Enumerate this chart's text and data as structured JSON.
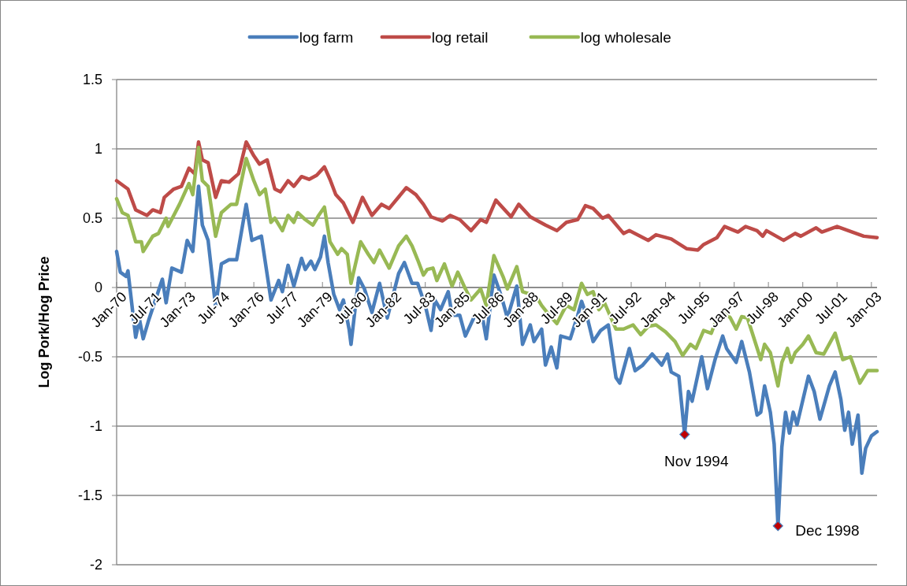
{
  "chart_data": {
    "type": "line",
    "ylabel": "Log Pork/Hog Price",
    "legend": "top",
    "grid": "y",
    "xlim": [
      "1970-01",
      "2003-04"
    ],
    "ylim": [
      -2,
      1.5
    ],
    "yticks": [
      -2,
      -1.5,
      -1,
      -0.5,
      0,
      0.5,
      1,
      1.5
    ],
    "xticks": [
      {
        "value": "1970-01",
        "label": "Jan-70"
      },
      {
        "value": "1971-07",
        "label": "Jul-71"
      },
      {
        "value": "1973-01",
        "label": "Jan-73"
      },
      {
        "value": "1974-07",
        "label": "Jul-74"
      },
      {
        "value": "1976-01",
        "label": "Jan-76"
      },
      {
        "value": "1977-07",
        "label": "Jul-77"
      },
      {
        "value": "1979-01",
        "label": "Jan-79"
      },
      {
        "value": "1980-07",
        "label": "Jul-80"
      },
      {
        "value": "1982-01",
        "label": "Jan-82"
      },
      {
        "value": "1983-07",
        "label": "Jul-83"
      },
      {
        "value": "1985-01",
        "label": "Jan-85"
      },
      {
        "value": "1986-07",
        "label": "Jul-86"
      },
      {
        "value": "1988-01",
        "label": "Jan-88"
      },
      {
        "value": "1989-07",
        "label": "Jul-89"
      },
      {
        "value": "1991-01",
        "label": "Jan-91"
      },
      {
        "value": "1992-07",
        "label": "Jul-92"
      },
      {
        "value": "1994-01",
        "label": "Jan-94"
      },
      {
        "value": "1995-07",
        "label": "Jul-95"
      },
      {
        "value": "1997-01",
        "label": "Jan-97"
      },
      {
        "value": "1998-07",
        "label": "Jul-98"
      },
      {
        "value": "2000-01",
        "label": "Jan-00"
      },
      {
        "value": "2001-07",
        "label": "Jul-01"
      },
      {
        "value": "2003-01",
        "label": "Jan-03"
      }
    ],
    "annotations": [
      {
        "text": "Nov 1994",
        "x": "1994-11",
        "y": -1.06
      },
      {
        "text": "Dec 1998",
        "x": "1998-12",
        "y": -1.72
      }
    ],
    "series": [
      {
        "name": "log farm",
        "color": "#4a7ebb",
        "x": [
          "1970-01",
          "1970-03",
          "1970-06",
          "1970-07",
          "1970-11",
          "1971-01",
          "1971-03",
          "1971-06",
          "1972-01",
          "1972-03",
          "1972-06",
          "1972-11",
          "1973-02",
          "1973-05",
          "1973-08",
          "1973-10",
          "1974-01",
          "1974-05",
          "1974-08",
          "1974-12",
          "1975-04",
          "1975-09",
          "1975-12",
          "1976-05",
          "1976-10",
          "1977-02",
          "1977-04",
          "1977-07",
          "1977-10",
          "1978-02",
          "1978-04",
          "1978-07",
          "1978-09",
          "1978-12",
          "1979-02",
          "1979-04",
          "1979-07",
          "1979-10",
          "1979-12",
          "1980-03",
          "1980-04",
          "1980-08",
          "1980-11",
          "1981-03",
          "1981-07",
          "1981-11",
          "1982-05",
          "1982-08",
          "1982-12",
          "1983-03",
          "1983-07",
          "1983-10",
          "1983-12",
          "1984-03",
          "1984-07",
          "1984-09",
          "1985-01",
          "1985-04",
          "1985-09",
          "1986-01",
          "1986-03",
          "1986-07",
          "1986-11",
          "1987-02",
          "1987-07",
          "1987-10",
          "1988-02",
          "1988-04",
          "1988-08",
          "1988-10",
          "1989-01",
          "1989-04",
          "1989-06",
          "1989-11",
          "1990-03",
          "1990-05",
          "1990-08",
          "1990-11",
          "1991-03",
          "1991-07",
          "1991-11",
          "1992-01",
          "1992-06",
          "1992-09",
          "1993-01",
          "1993-06",
          "1993-11",
          "1994-02",
          "1994-04",
          "1994-08",
          "1994-11",
          "1995-01",
          "1995-03",
          "1995-08",
          "1995-11",
          "1996-03",
          "1996-07",
          "1996-09",
          "1997-02",
          "1997-05",
          "1997-09",
          "1998-01",
          "1998-03",
          "1998-05",
          "1998-08",
          "1998-10",
          "1998-12",
          "1999-02",
          "1999-04",
          "1999-06",
          "1999-08",
          "1999-10",
          "2000-04",
          "2000-07",
          "2000-10",
          "2001-03",
          "2001-06",
          "2001-09",
          "2001-11",
          "2002-01",
          "2002-03",
          "2002-06",
          "2002-08",
          "2002-10",
          "2003-01",
          "2003-04"
        ],
        "values": [
          0.26,
          0.11,
          0.08,
          0.12,
          -0.36,
          -0.23,
          -0.37,
          -0.23,
          0.06,
          -0.11,
          0.14,
          0.11,
          0.34,
          0.26,
          0.73,
          0.45,
          0.34,
          -0.14,
          0.17,
          0.2,
          0.2,
          0.6,
          0.34,
          0.37,
          -0.09,
          0.05,
          -0.03,
          0.16,
          0.01,
          0.21,
          0.13,
          0.19,
          0.13,
          0.22,
          0.37,
          0.18,
          -0.05,
          -0.16,
          -0.09,
          -0.3,
          -0.41,
          0.07,
          -0.01,
          -0.18,
          0.03,
          -0.22,
          0.1,
          0.18,
          0.03,
          0.03,
          -0.13,
          -0.31,
          -0.09,
          -0.16,
          -0.03,
          -0.2,
          -0.2,
          -0.35,
          -0.2,
          -0.22,
          -0.37,
          0.09,
          -0.07,
          -0.22,
          0.01,
          -0.41,
          -0.27,
          -0.39,
          -0.3,
          -0.56,
          -0.43,
          -0.58,
          -0.35,
          -0.37,
          -0.2,
          -0.1,
          -0.22,
          -0.39,
          -0.31,
          -0.27,
          -0.65,
          -0.69,
          -0.44,
          -0.6,
          -0.56,
          -0.48,
          -0.56,
          -0.48,
          -0.61,
          -0.64,
          -1.06,
          -0.75,
          -0.82,
          -0.5,
          -0.73,
          -0.52,
          -0.35,
          -0.44,
          -0.54,
          -0.39,
          -0.61,
          -0.92,
          -0.9,
          -0.71,
          -0.9,
          -1.13,
          -1.72,
          -1.15,
          -0.9,
          -1.05,
          -0.9,
          -0.99,
          -0.64,
          -0.75,
          -0.95,
          -0.71,
          -0.61,
          -0.81,
          -1.03,
          -0.9,
          -1.13,
          -0.92,
          -1.34,
          -1.16,
          -1.07,
          -1.04
        ]
      },
      {
        "name": "log retail",
        "color": "#be4b48",
        "x": [
          "1970-01",
          "1970-07",
          "1970-11",
          "1971-05",
          "1971-08",
          "1971-12",
          "1972-02",
          "1972-07",
          "1972-11",
          "1973-03",
          "1973-06",
          "1973-08",
          "1973-10",
          "1974-01",
          "1974-05",
          "1974-08",
          "1974-12",
          "1975-05",
          "1975-09",
          "1976-01",
          "1976-04",
          "1976-08",
          "1976-12",
          "1977-03",
          "1977-07",
          "1977-10",
          "1978-02",
          "1978-06",
          "1978-10",
          "1979-02",
          "1979-05",
          "1979-08",
          "1979-12",
          "1980-05",
          "1980-10",
          "1981-03",
          "1981-08",
          "1981-12",
          "1982-09",
          "1983-02",
          "1983-06",
          "1983-10",
          "1984-04",
          "1984-08",
          "1985-01",
          "1985-07",
          "1985-12",
          "1986-03",
          "1986-08",
          "1987-04",
          "1987-08",
          "1988-02",
          "1988-10",
          "1989-04",
          "1989-09",
          "1990-03",
          "1990-07",
          "1990-11",
          "1991-04",
          "1991-07",
          "1992-03",
          "1992-06",
          "1993-04",
          "1993-08",
          "1994-04",
          "1994-12",
          "1995-06",
          "1995-09",
          "1996-04",
          "1996-08",
          "1997-03",
          "1997-07",
          "1998-01",
          "1998-04",
          "1998-06",
          "1999-03",
          "1999-09",
          "1999-12",
          "2000-08",
          "2000-11",
          "2001-07",
          "2002-03",
          "2002-09",
          "2003-04"
        ],
        "values": [
          0.77,
          0.71,
          0.56,
          0.52,
          0.56,
          0.54,
          0.65,
          0.71,
          0.73,
          0.86,
          0.82,
          1.05,
          0.92,
          0.9,
          0.65,
          0.77,
          0.76,
          0.82,
          1.05,
          0.95,
          0.89,
          0.92,
          0.71,
          0.69,
          0.77,
          0.73,
          0.8,
          0.78,
          0.81,
          0.87,
          0.78,
          0.67,
          0.61,
          0.47,
          0.65,
          0.52,
          0.6,
          0.57,
          0.72,
          0.67,
          0.6,
          0.51,
          0.48,
          0.52,
          0.49,
          0.41,
          0.49,
          0.47,
          0.63,
          0.51,
          0.6,
          0.51,
          0.45,
          0.41,
          0.47,
          0.49,
          0.59,
          0.57,
          0.5,
          0.52,
          0.39,
          0.41,
          0.34,
          0.38,
          0.35,
          0.28,
          0.27,
          0.31,
          0.36,
          0.44,
          0.4,
          0.44,
          0.41,
          0.37,
          0.41,
          0.34,
          0.39,
          0.37,
          0.43,
          0.4,
          0.44,
          0.4,
          0.37,
          0.36
        ]
      },
      {
        "name": "log wholesale",
        "color": "#98b954",
        "x": [
          "1970-01",
          "1970-04",
          "1970-07",
          "1970-11",
          "1971-02",
          "1971-03",
          "1971-08",
          "1971-11",
          "1972-03",
          "1972-04",
          "1972-10",
          "1973-03",
          "1973-05",
          "1973-08",
          "1973-10",
          "1974-01",
          "1974-05",
          "1974-08",
          "1975-01",
          "1975-04",
          "1975-09",
          "1976-01",
          "1976-04",
          "1976-07",
          "1976-10",
          "1976-12",
          "1977-04",
          "1977-07",
          "1977-10",
          "1977-12",
          "1978-04",
          "1978-08",
          "1978-11",
          "1979-02",
          "1979-05",
          "1979-09",
          "1979-11",
          "1980-02",
          "1980-04",
          "1980-09",
          "1981-01",
          "1981-04",
          "1981-07",
          "1981-12",
          "1982-05",
          "1982-09",
          "1982-12",
          "1983-03",
          "1983-06",
          "1983-08",
          "1983-11",
          "1984-01",
          "1984-05",
          "1984-09",
          "1984-12",
          "1985-04",
          "1985-07",
          "1985-12",
          "1986-03",
          "1986-07",
          "1986-12",
          "1987-02",
          "1987-07",
          "1987-10",
          "1988-05",
          "1988-08",
          "1988-12",
          "1989-04",
          "1989-07",
          "1989-09",
          "1990-01",
          "1990-05",
          "1990-08",
          "1990-11",
          "1991-02",
          "1991-05",
          "1991-11",
          "1992-03",
          "1992-08",
          "1992-12",
          "1993-04",
          "1993-08",
          "1994-01",
          "1994-06",
          "1994-10",
          "1995-02",
          "1995-05",
          "1995-09",
          "1996-01",
          "1996-04",
          "1996-08",
          "1996-11",
          "1997-02",
          "1997-05",
          "1997-08",
          "1998-03",
          "1998-05",
          "1998-08",
          "1998-12",
          "1999-02",
          "1999-05",
          "1999-07",
          "1999-09",
          "2000-01",
          "2000-04",
          "2000-08",
          "2000-12",
          "2001-06",
          "2001-10",
          "2002-02",
          "2002-07",
          "2002-11",
          "2003-04"
        ],
        "values": [
          0.64,
          0.54,
          0.52,
          0.33,
          0.33,
          0.26,
          0.37,
          0.39,
          0.5,
          0.44,
          0.6,
          0.75,
          0.67,
          1.01,
          0.77,
          0.73,
          0.37,
          0.54,
          0.6,
          0.6,
          0.93,
          0.77,
          0.67,
          0.71,
          0.47,
          0.5,
          0.41,
          0.52,
          0.47,
          0.54,
          0.49,
          0.45,
          0.52,
          0.58,
          0.33,
          0.24,
          0.28,
          0.24,
          0.03,
          0.33,
          0.24,
          0.18,
          0.27,
          0.14,
          0.3,
          0.37,
          0.3,
          0.2,
          0.09,
          0.13,
          0.14,
          0.05,
          0.17,
          0.01,
          0.11,
          -0.01,
          -0.09,
          -0.01,
          -0.13,
          0.23,
          0.07,
          -0.01,
          0.15,
          -0.03,
          -0.06,
          -0.13,
          -0.2,
          -0.26,
          -0.18,
          -0.13,
          -0.16,
          0.03,
          -0.05,
          -0.03,
          -0.16,
          -0.11,
          -0.3,
          -0.3,
          -0.27,
          -0.34,
          -0.28,
          -0.27,
          -0.32,
          -0.39,
          -0.49,
          -0.41,
          -0.44,
          -0.31,
          -0.33,
          -0.22,
          -0.18,
          -0.22,
          -0.3,
          -0.21,
          -0.22,
          -0.52,
          -0.41,
          -0.47,
          -0.71,
          -0.54,
          -0.44,
          -0.54,
          -0.47,
          -0.41,
          -0.35,
          -0.47,
          -0.48,
          -0.33,
          -0.52,
          -0.5,
          -0.69,
          -0.6,
          -0.6
        ]
      }
    ]
  }
}
